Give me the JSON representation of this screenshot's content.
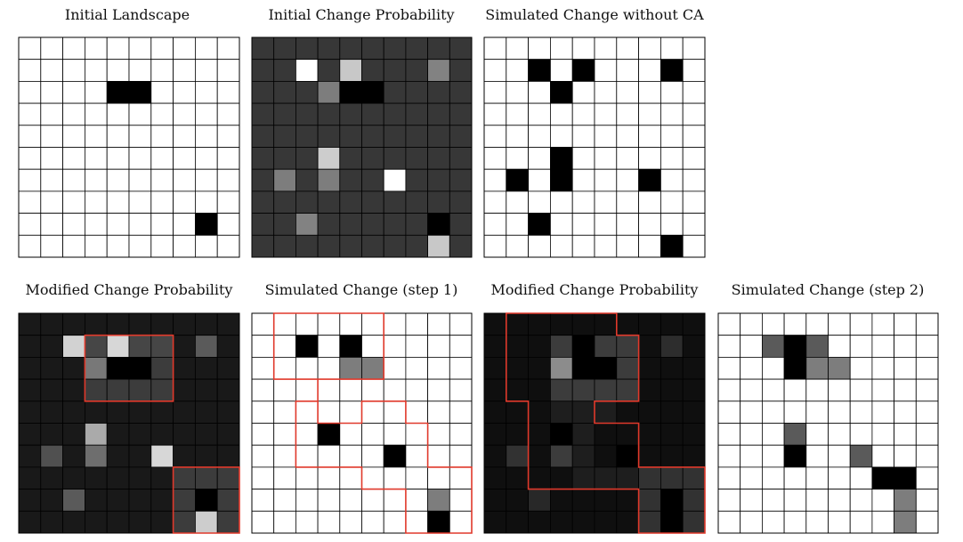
{
  "colors": {
    "background": "#ffffff",
    "grid_line": "#000000",
    "region_outline": "#e0392b"
  },
  "panels": [
    {
      "id": "initial-landscape",
      "title": "Initial Landscape",
      "cells": [
        [
          255,
          255,
          255,
          255,
          255,
          255,
          255,
          255,
          255,
          255
        ],
        [
          255,
          255,
          255,
          255,
          255,
          255,
          255,
          255,
          255,
          255
        ],
        [
          255,
          255,
          255,
          255,
          0,
          0,
          255,
          255,
          255,
          255
        ],
        [
          255,
          255,
          255,
          255,
          255,
          255,
          255,
          255,
          255,
          255
        ],
        [
          255,
          255,
          255,
          255,
          255,
          255,
          255,
          255,
          255,
          255
        ],
        [
          255,
          255,
          255,
          255,
          255,
          255,
          255,
          255,
          255,
          255
        ],
        [
          255,
          255,
          255,
          255,
          255,
          255,
          255,
          255,
          255,
          255
        ],
        [
          255,
          255,
          255,
          255,
          255,
          255,
          255,
          255,
          255,
          255
        ],
        [
          255,
          255,
          255,
          255,
          255,
          255,
          255,
          255,
          0,
          255
        ],
        [
          255,
          255,
          255,
          255,
          255,
          255,
          255,
          255,
          255,
          255
        ]
      ],
      "regions": []
    },
    {
      "id": "initial-change-probability",
      "title": "Initial Change Probability",
      "cells": [
        [
          55,
          55,
          55,
          55,
          55,
          55,
          55,
          55,
          55,
          55
        ],
        [
          55,
          55,
          255,
          55,
          200,
          55,
          55,
          55,
          130,
          55
        ],
        [
          55,
          55,
          55,
          125,
          0,
          0,
          55,
          55,
          55,
          55
        ],
        [
          55,
          55,
          55,
          55,
          55,
          55,
          55,
          55,
          55,
          55
        ],
        [
          55,
          55,
          55,
          55,
          55,
          55,
          55,
          55,
          55,
          55
        ],
        [
          55,
          55,
          55,
          205,
          55,
          55,
          55,
          55,
          55,
          55
        ],
        [
          55,
          125,
          55,
          125,
          55,
          55,
          255,
          55,
          55,
          55
        ],
        [
          55,
          55,
          55,
          55,
          55,
          55,
          55,
          55,
          55,
          55
        ],
        [
          55,
          55,
          130,
          55,
          55,
          55,
          55,
          55,
          0,
          55
        ],
        [
          55,
          55,
          55,
          55,
          55,
          55,
          55,
          55,
          200,
          55
        ]
      ],
      "regions": []
    },
    {
      "id": "simulated-change-without-ca",
      "title": "Simulated Change without CA",
      "cells": [
        [
          255,
          255,
          255,
          255,
          255,
          255,
          255,
          255,
          255,
          255
        ],
        [
          255,
          255,
          0,
          255,
          0,
          255,
          255,
          255,
          0,
          255
        ],
        [
          255,
          255,
          255,
          0,
          255,
          255,
          255,
          255,
          255,
          255
        ],
        [
          255,
          255,
          255,
          255,
          255,
          255,
          255,
          255,
          255,
          255
        ],
        [
          255,
          255,
          255,
          255,
          255,
          255,
          255,
          255,
          255,
          255
        ],
        [
          255,
          255,
          255,
          0,
          255,
          255,
          255,
          255,
          255,
          255
        ],
        [
          255,
          0,
          255,
          0,
          255,
          255,
          255,
          0,
          255,
          255
        ],
        [
          255,
          255,
          255,
          255,
          255,
          255,
          255,
          255,
          255,
          255
        ],
        [
          255,
          255,
          0,
          255,
          255,
          255,
          255,
          255,
          255,
          255
        ],
        [
          255,
          255,
          255,
          255,
          255,
          255,
          255,
          255,
          0,
          255
        ]
      ],
      "regions": []
    },
    {
      "id": "modified-change-probability-1",
      "title": "Modified Change Probability",
      "cells": [
        [
          25,
          25,
          25,
          25,
          25,
          25,
          25,
          25,
          25,
          25
        ],
        [
          25,
          25,
          210,
          70,
          215,
          70,
          70,
          25,
          90,
          25
        ],
        [
          25,
          25,
          25,
          120,
          0,
          0,
          60,
          25,
          25,
          25
        ],
        [
          25,
          25,
          25,
          60,
          60,
          60,
          60,
          25,
          25,
          25
        ],
        [
          25,
          25,
          25,
          25,
          25,
          25,
          25,
          25,
          25,
          25
        ],
        [
          25,
          25,
          25,
          170,
          25,
          25,
          25,
          25,
          25,
          25
        ],
        [
          25,
          80,
          25,
          110,
          25,
          25,
          215,
          25,
          25,
          25
        ],
        [
          25,
          25,
          25,
          25,
          25,
          25,
          25,
          60,
          60,
          60
        ],
        [
          25,
          25,
          90,
          25,
          25,
          25,
          25,
          60,
          0,
          60
        ],
        [
          25,
          25,
          25,
          25,
          25,
          25,
          25,
          60,
          205,
          60
        ]
      ],
      "regions": [
        [
          [
            3,
            1
          ],
          [
            7,
            1
          ],
          [
            7,
            4
          ],
          [
            3,
            4
          ]
        ],
        [
          [
            7,
            7
          ],
          [
            10,
            7
          ],
          [
            10,
            10
          ],
          [
            7,
            10
          ]
        ]
      ]
    },
    {
      "id": "simulated-change-step-1",
      "title": "Simulated Change (step 1)",
      "cells": [
        [
          255,
          255,
          255,
          255,
          255,
          255,
          255,
          255,
          255,
          255
        ],
        [
          255,
          255,
          0,
          255,
          0,
          255,
          255,
          255,
          255,
          255
        ],
        [
          255,
          255,
          255,
          255,
          125,
          125,
          255,
          255,
          255,
          255
        ],
        [
          255,
          255,
          255,
          255,
          255,
          255,
          255,
          255,
          255,
          255
        ],
        [
          255,
          255,
          255,
          255,
          255,
          255,
          255,
          255,
          255,
          255
        ],
        [
          255,
          255,
          255,
          0,
          255,
          255,
          255,
          255,
          255,
          255
        ],
        [
          255,
          255,
          255,
          255,
          255,
          255,
          0,
          255,
          255,
          255
        ],
        [
          255,
          255,
          255,
          255,
          255,
          255,
          255,
          255,
          255,
          255
        ],
        [
          255,
          255,
          255,
          255,
          255,
          255,
          255,
          255,
          125,
          255
        ],
        [
          255,
          255,
          255,
          255,
          255,
          255,
          255,
          255,
          0,
          255
        ]
      ],
      "regions": [
        [
          [
            1,
            0
          ],
          [
            6,
            0
          ],
          [
            6,
            3
          ],
          [
            3,
            3
          ],
          [
            3,
            4
          ],
          [
            2,
            4
          ],
          [
            2,
            7
          ],
          [
            5,
            7
          ],
          [
            5,
            8
          ],
          [
            7,
            8
          ],
          [
            7,
            10
          ],
          [
            10,
            10
          ],
          [
            10,
            7
          ],
          [
            8,
            7
          ],
          [
            8,
            5
          ],
          [
            7,
            5
          ],
          [
            7,
            4
          ],
          [
            5,
            4
          ],
          [
            5,
            5
          ],
          [
            3,
            5
          ],
          [
            3,
            3
          ],
          [
            1,
            3
          ]
        ]
      ]
    },
    {
      "id": "modified-change-probability-2",
      "title": "Modified Change Probability",
      "cells": [
        [
          15,
          15,
          15,
          15,
          15,
          15,
          15,
          15,
          15,
          15
        ],
        [
          15,
          15,
          15,
          60,
          0,
          60,
          60,
          15,
          45,
          15
        ],
        [
          15,
          15,
          15,
          140,
          0,
          0,
          60,
          15,
          15,
          15
        ],
        [
          15,
          15,
          15,
          60,
          60,
          60,
          60,
          15,
          15,
          15
        ],
        [
          15,
          15,
          15,
          30,
          30,
          30,
          15,
          15,
          15,
          15
        ],
        [
          15,
          15,
          15,
          0,
          30,
          15,
          15,
          15,
          15,
          15
        ],
        [
          15,
          50,
          15,
          60,
          30,
          15,
          0,
          15,
          15,
          15
        ],
        [
          15,
          15,
          15,
          15,
          30,
          30,
          30,
          50,
          50,
          50
        ],
        [
          15,
          15,
          40,
          15,
          15,
          15,
          15,
          50,
          0,
          50
        ],
        [
          15,
          15,
          15,
          15,
          15,
          15,
          15,
          50,
          0,
          50
        ]
      ],
      "regions": [
        [
          [
            1,
            0
          ],
          [
            6,
            0
          ],
          [
            6,
            1
          ],
          [
            7,
            1
          ],
          [
            7,
            4
          ],
          [
            5,
            4
          ],
          [
            5,
            5
          ],
          [
            7,
            5
          ],
          [
            7,
            7
          ],
          [
            10,
            7
          ],
          [
            10,
            10
          ],
          [
            7,
            10
          ],
          [
            7,
            8
          ],
          [
            2,
            8
          ],
          [
            2,
            4
          ],
          [
            1,
            4
          ]
        ]
      ]
    },
    {
      "id": "simulated-change-step-2",
      "title": "Simulated Change (step 2)",
      "cells": [
        [
          255,
          255,
          255,
          255,
          255,
          255,
          255,
          255,
          255,
          255
        ],
        [
          255,
          255,
          90,
          0,
          90,
          255,
          255,
          255,
          255,
          255
        ],
        [
          255,
          255,
          255,
          0,
          125,
          125,
          255,
          255,
          255,
          255
        ],
        [
          255,
          255,
          255,
          255,
          255,
          255,
          255,
          255,
          255,
          255
        ],
        [
          255,
          255,
          255,
          255,
          255,
          255,
          255,
          255,
          255,
          255
        ],
        [
          255,
          255,
          255,
          90,
          255,
          255,
          255,
          255,
          255,
          255
        ],
        [
          255,
          255,
          255,
          0,
          255,
          255,
          90,
          255,
          255,
          255
        ],
        [
          255,
          255,
          255,
          255,
          255,
          255,
          255,
          0,
          0,
          255
        ],
        [
          255,
          255,
          255,
          255,
          255,
          255,
          255,
          255,
          125,
          255
        ],
        [
          255,
          255,
          255,
          255,
          255,
          255,
          255,
          255,
          125,
          255
        ]
      ],
      "regions": []
    }
  ]
}
